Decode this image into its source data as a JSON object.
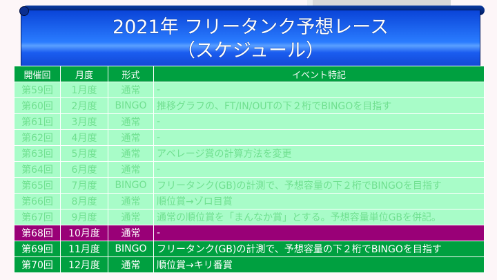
{
  "title": {
    "line1": "2021年 フリータンク予想レース",
    "line2": "（スケジュール）"
  },
  "colors": {
    "header": "#00a040",
    "past_row": "#a8fcc8",
    "current_row": "#990077",
    "future_row": "#00a040",
    "banner": "#1a5cf0"
  },
  "table": {
    "headers": [
      "開催回",
      "月度",
      "形式",
      "イベント特記"
    ],
    "rows": [
      {
        "status": "past",
        "round": "第59回",
        "month": "1月度",
        "format": "通常",
        "note": "-"
      },
      {
        "status": "past",
        "round": "第60回",
        "month": "2月度",
        "format": "BINGO",
        "note": "推移グラフの、FT/IN/OUTの下２桁でBINGOを目指す"
      },
      {
        "status": "past",
        "round": "第61回",
        "month": "3月度",
        "format": "通常",
        "note": "-"
      },
      {
        "status": "past",
        "round": "第62回",
        "month": "4月度",
        "format": "通常",
        "note": "-"
      },
      {
        "status": "past",
        "round": "第63回",
        "month": "5月度",
        "format": "通常",
        "note": "アベレージ賞の計算方法を変更"
      },
      {
        "status": "past",
        "round": "第64回",
        "month": "6月度",
        "format": "通常",
        "note": "-"
      },
      {
        "status": "past",
        "round": "第65回",
        "month": "7月度",
        "format": "BINGO",
        "note": "フリータンク(GB)の計測で、予想容量の下２桁でBINGOを目指す"
      },
      {
        "status": "past",
        "round": "第66回",
        "month": "8月度",
        "format": "通常",
        "note": "順位賞→ゾロ目賞"
      },
      {
        "status": "past",
        "round": "第67回",
        "month": "9月度",
        "format": "通常",
        "note": "通常の順位賞を「まんなか賞」とする。予想容量単位GBを併記。"
      },
      {
        "status": "current",
        "round": "第68回",
        "month": "10月度",
        "format": "通常",
        "note": "-"
      },
      {
        "status": "future",
        "round": "第69回",
        "month": "11月度",
        "format": "BINGO",
        "note": "フリータンク(GB)の計測で、予想容量の下２桁でBINGOを目指す"
      },
      {
        "status": "future",
        "round": "第70回",
        "month": "12月度",
        "format": "通常",
        "note": "順位賞→キリ番賞"
      }
    ]
  }
}
